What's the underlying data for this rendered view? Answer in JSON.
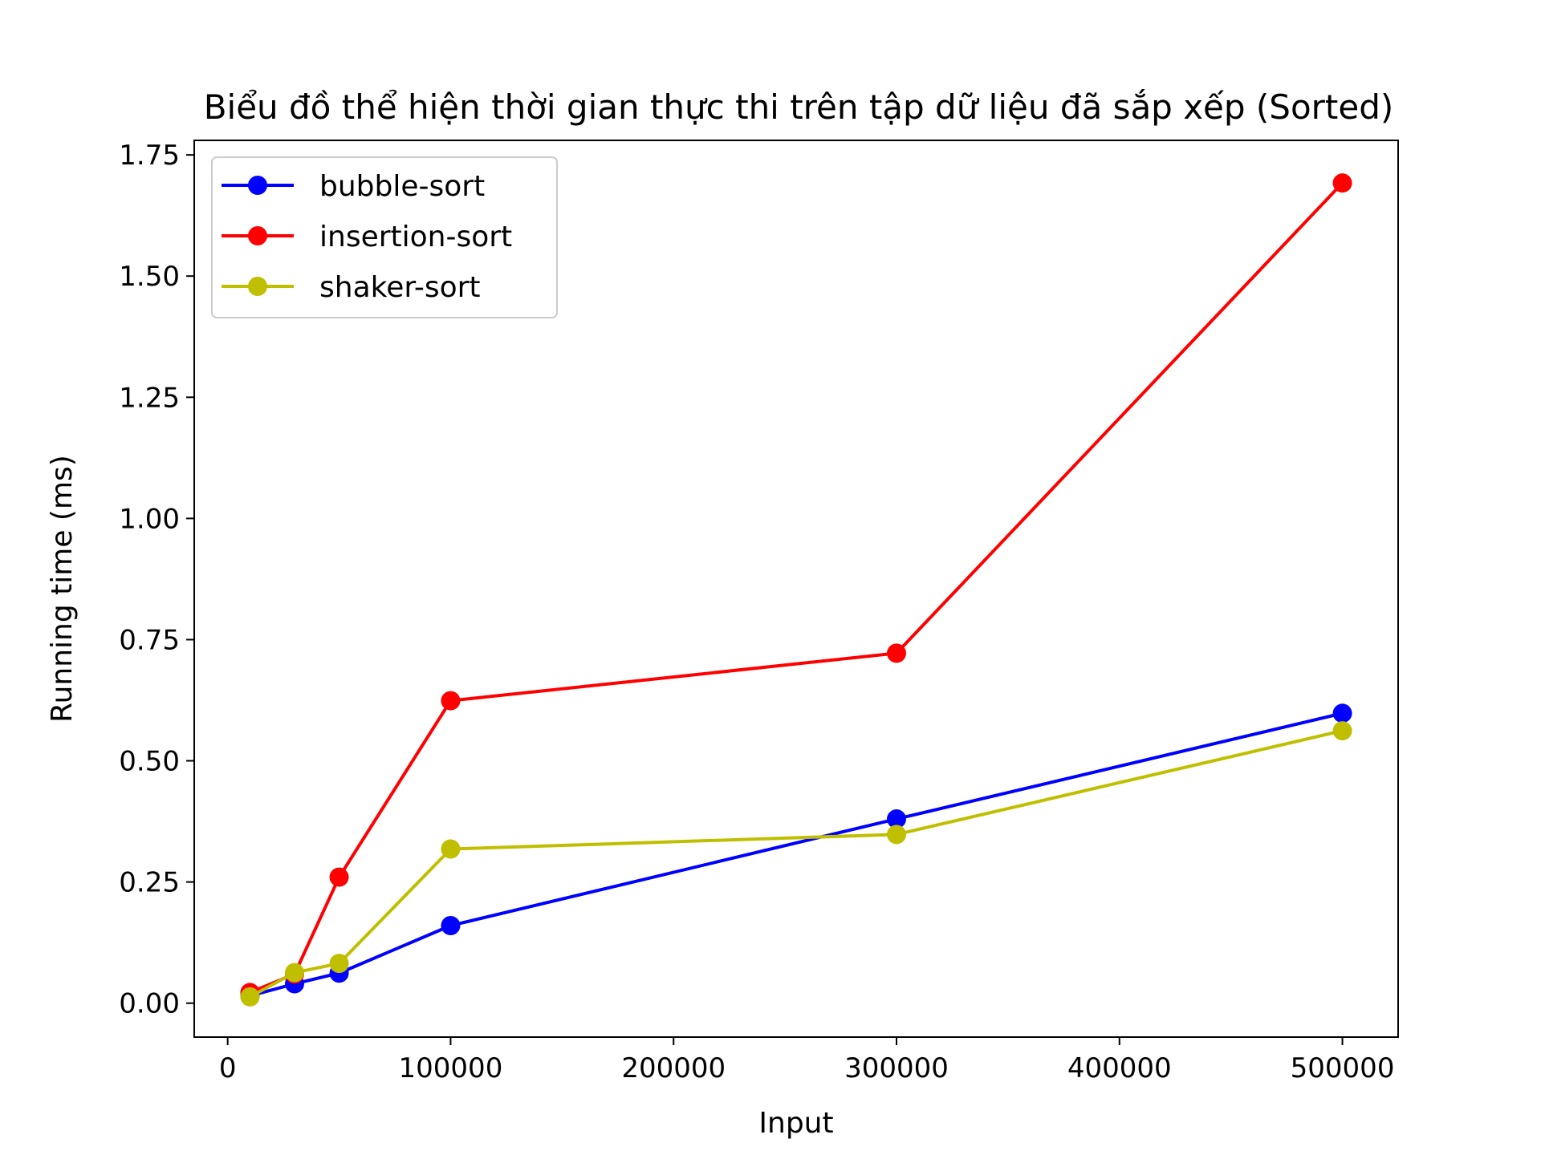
{
  "chart_data": {
    "type": "line",
    "title": "Biểu đồ thể hiện thời gian thực thi trên tập dữ liệu đã sắp xếp (Sorted)",
    "xlabel": "Input",
    "ylabel": "Running time (ms)",
    "xlim": [
      -15000,
      525000
    ],
    "ylim": [
      -0.07,
      1.78
    ],
    "xticks": [
      0,
      100000,
      200000,
      300000,
      400000,
      500000
    ],
    "xtick_labels": [
      "0",
      "100000",
      "200000",
      "300000",
      "400000",
      "500000"
    ],
    "yticks": [
      0,
      0.25,
      0.5,
      0.75,
      1.0,
      1.25,
      1.5,
      1.75
    ],
    "ytick_labels": [
      "0.00",
      "0.25",
      "0.50",
      "0.75",
      "1.00",
      "1.25",
      "1.50",
      "1.75"
    ],
    "grid": false,
    "legend_position": "top-left",
    "x": [
      10000,
      30000,
      50000,
      100000,
      300000,
      500000
    ],
    "series": [
      {
        "name": "bubble-sort",
        "color": "#0000ff",
        "values": [
          0.015,
          0.04,
          0.062,
          0.16,
          0.38,
          0.598
        ]
      },
      {
        "name": "insertion-sort",
        "color": "#ff0000",
        "values": [
          0.022,
          0.06,
          0.26,
          0.624,
          0.722,
          1.692
        ]
      },
      {
        "name": "shaker-sort",
        "color": "#bfbf00",
        "values": [
          0.013,
          0.063,
          0.082,
          0.318,
          0.348,
          0.562
        ]
      }
    ]
  }
}
